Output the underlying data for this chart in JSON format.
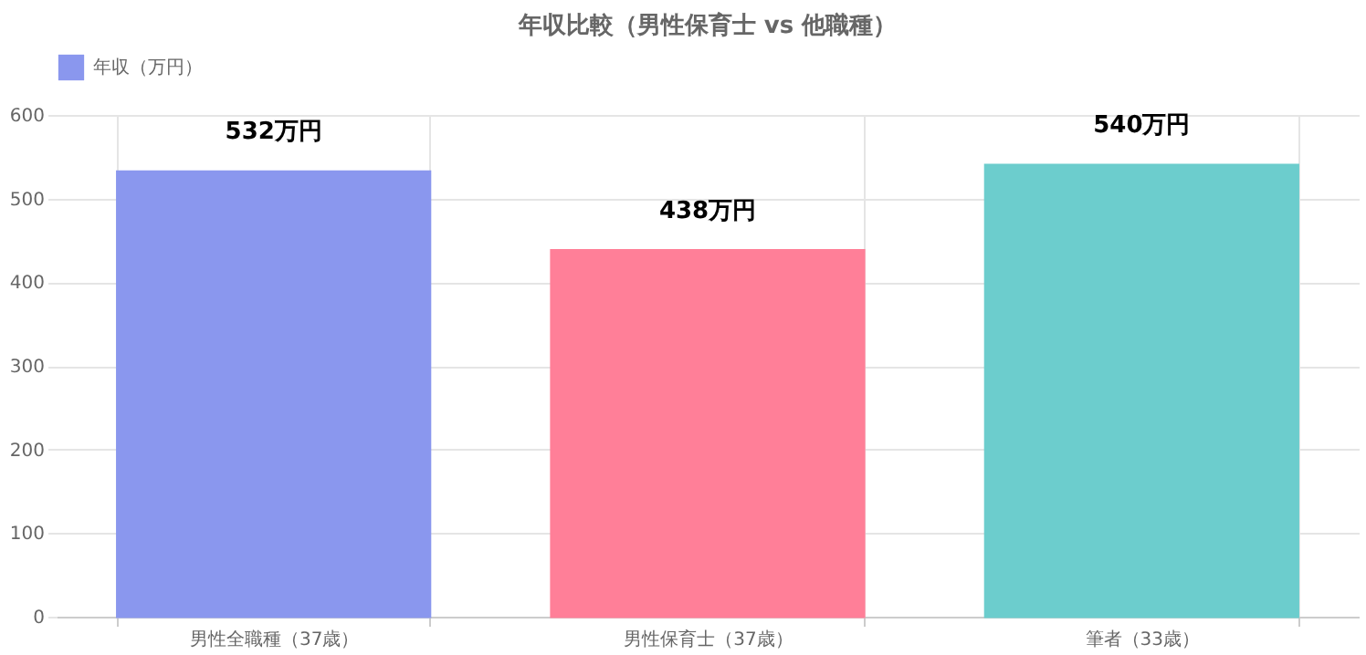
{
  "chart_data": {
    "type": "bar",
    "title": "年収比較（男性保育士 vs 他職種）",
    "categories": [
      "男性全職種（37歳）",
      "男性保育士（37歳）",
      "筆者（33歳）"
    ],
    "series": [
      {
        "name": "年収（万円）",
        "color": "#8a97ee",
        "colors": [
          "#8a97ee",
          "#ff7f98",
          "#6ccdcd"
        ],
        "values": [
          532,
          438,
          540
        ],
        "value_labels": [
          "532万円",
          "438万円",
          "540万円"
        ]
      }
    ],
    "ylim": [
      0,
      600
    ],
    "yticks": [
      0,
      100,
      200,
      300,
      400,
      500,
      600
    ],
    "grid": true,
    "legend": "top"
  }
}
